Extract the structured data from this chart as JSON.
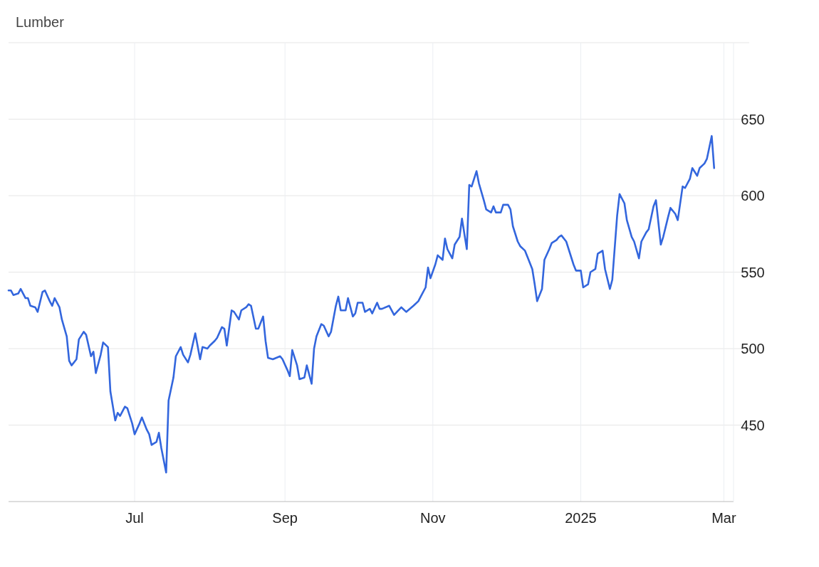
{
  "chart_data": {
    "type": "line",
    "title": "Lumber",
    "x": [
      "2024-05-10",
      "2024-05-11",
      "2024-05-12",
      "2024-05-14",
      "2024-05-15",
      "2024-05-17",
      "2024-05-18",
      "2024-05-19",
      "2024-05-21",
      "2024-05-22",
      "2024-05-24",
      "2024-05-25",
      "2024-05-27",
      "2024-05-28",
      "2024-05-29",
      "2024-05-31",
      "2024-06-01",
      "2024-06-03",
      "2024-06-04",
      "2024-06-05",
      "2024-06-07",
      "2024-06-08",
      "2024-06-10",
      "2024-06-11",
      "2024-06-13",
      "2024-06-14",
      "2024-06-15",
      "2024-06-17",
      "2024-06-18",
      "2024-06-20",
      "2024-06-21",
      "2024-06-23",
      "2024-06-24",
      "2024-06-25",
      "2024-06-27",
      "2024-06-28",
      "2024-06-30",
      "2024-07-01",
      "2024-07-03",
      "2024-07-04",
      "2024-07-06",
      "2024-07-07",
      "2024-07-08",
      "2024-07-10",
      "2024-07-11",
      "2024-07-12",
      "2024-07-14",
      "2024-07-15",
      "2024-07-17",
      "2024-07-18",
      "2024-07-20",
      "2024-07-21",
      "2024-07-23",
      "2024-07-24",
      "2024-07-26",
      "2024-07-28",
      "2024-07-29",
      "2024-07-31",
      "2024-08-01",
      "2024-08-03",
      "2024-08-04",
      "2024-08-06",
      "2024-08-07",
      "2024-08-08",
      "2024-08-10",
      "2024-08-11",
      "2024-08-13",
      "2024-08-14",
      "2024-08-16",
      "2024-08-17",
      "2024-08-18",
      "2024-08-20",
      "2024-08-21",
      "2024-08-23",
      "2024-08-24",
      "2024-08-25",
      "2024-08-27",
      "2024-08-30",
      "2024-08-31",
      "2024-09-02",
      "2024-09-03",
      "2024-09-04",
      "2024-09-06",
      "2024-09-07",
      "2024-09-09",
      "2024-09-10",
      "2024-09-12",
      "2024-09-13",
      "2024-09-14",
      "2024-09-16",
      "2024-09-17",
      "2024-09-19",
      "2024-09-20",
      "2024-09-22",
      "2024-09-23",
      "2024-09-24",
      "2024-09-26",
      "2024-09-27",
      "2024-09-29",
      "2024-09-30",
      "2024-10-01",
      "2024-10-03",
      "2024-10-04",
      "2024-10-06",
      "2024-10-07",
      "2024-10-09",
      "2024-10-10",
      "2024-10-11",
      "2024-10-14",
      "2024-10-16",
      "2024-10-19",
      "2024-10-21",
      "2024-10-24",
      "2024-10-26",
      "2024-10-27",
      "2024-10-29",
      "2024-10-30",
      "2024-10-31",
      "2024-11-02",
      "2024-11-03",
      "2024-11-05",
      "2024-11-06",
      "2024-11-07",
      "2024-11-09",
      "2024-11-10",
      "2024-11-12",
      "2024-11-13",
      "2024-11-15",
      "2024-11-16",
      "2024-11-17",
      "2024-11-19",
      "2024-11-20",
      "2024-11-22",
      "2024-11-23",
      "2024-11-25",
      "2024-11-26",
      "2024-11-27",
      "2024-11-29",
      "2024-11-30",
      "2024-12-02",
      "2024-12-03",
      "2024-12-04",
      "2024-12-06",
      "2024-12-07",
      "2024-12-09",
      "2024-12-10",
      "2024-12-12",
      "2024-12-13",
      "2024-12-14",
      "2024-12-16",
      "2024-12-17",
      "2024-12-19",
      "2024-12-20",
      "2024-12-22",
      "2024-12-23",
      "2024-12-24",
      "2024-12-26",
      "2024-12-27",
      "2024-12-29",
      "2024-12-30",
      "2025-01-01",
      "2025-01-02",
      "2025-01-04",
      "2025-01-05",
      "2025-01-07",
      "2025-01-08",
      "2025-01-10",
      "2025-01-11",
      "2025-01-13",
      "2025-01-14",
      "2025-01-16",
      "2025-01-17",
      "2025-01-19",
      "2025-01-20",
      "2025-01-22",
      "2025-01-23",
      "2025-01-25",
      "2025-01-26",
      "2025-01-28",
      "2025-01-29",
      "2025-01-31",
      "2025-02-01",
      "2025-02-03",
      "2025-02-04",
      "2025-02-06",
      "2025-02-07",
      "2025-02-09",
      "2025-02-10",
      "2025-02-12",
      "2025-02-13",
      "2025-02-15",
      "2025-02-16",
      "2025-02-18",
      "2025-02-19",
      "2025-02-21",
      "2025-02-22",
      "2025-02-24",
      "2025-02-25"
    ],
    "series": [
      {
        "color": "#3366dd",
        "values": [
          538,
          538,
          535,
          536,
          539,
          533,
          533,
          528,
          527,
          524,
          537,
          538,
          531,
          528,
          533,
          527,
          519,
          508,
          492,
          489,
          493,
          506,
          511,
          509,
          495,
          498,
          484,
          496,
          504,
          501,
          472,
          453,
          458,
          456,
          462,
          461,
          451,
          444,
          451,
          455,
          447,
          444,
          437,
          439,
          445,
          435,
          419,
          466,
          481,
          495,
          501,
          496,
          491,
          496,
          510,
          493,
          501,
          500,
          502,
          505,
          507,
          514,
          513,
          502,
          525,
          524,
          519,
          525,
          527,
          529,
          528,
          513,
          513,
          521,
          505,
          494,
          493,
          495,
          493,
          486,
          482,
          499,
          489,
          480,
          481,
          489,
          477,
          500,
          508,
          516,
          515,
          508,
          511,
          528,
          534,
          525,
          525,
          533,
          521,
          523,
          530,
          530,
          524,
          526,
          523,
          530,
          526,
          526,
          528,
          522,
          527,
          524,
          528,
          531,
          534,
          540,
          553,
          546,
          555,
          561,
          558,
          572,
          565,
          559,
          568,
          573,
          585,
          565,
          607,
          606,
          616,
          608,
          597,
          591,
          589,
          593,
          589,
          589,
          594,
          594,
          591,
          580,
          570,
          567,
          564,
          560,
          552,
          542,
          531,
          539,
          558,
          565,
          569,
          571,
          573,
          574,
          570,
          565,
          555,
          551,
          551,
          540,
          542,
          550,
          552,
          562,
          564,
          552,
          539,
          545,
          587,
          601,
          595,
          584,
          573,
          570,
          559,
          570,
          576,
          578,
          593,
          597,
          568,
          573,
          586,
          592,
          588,
          584,
          606,
          605,
          611,
          618,
          613,
          618,
          621,
          624,
          639,
          618
        ]
      }
    ],
    "xlim": [
      "2024-05-10",
      "2025-03-05"
    ],
    "xticks": [
      {
        "value": "2024-07-01",
        "label": "Jul"
      },
      {
        "value": "2024-09-01",
        "label": "Sep"
      },
      {
        "value": "2024-11-01",
        "label": "Nov"
      },
      {
        "value": "2025-01-01",
        "label": "2025"
      },
      {
        "value": "2025-03-01",
        "label": "Mar"
      }
    ],
    "ylim": [
      400,
      700
    ],
    "yticks": [
      450,
      500,
      550,
      600,
      650,
      {
        "value": 700,
        "label": null
      }
    ],
    "grid": true
  }
}
